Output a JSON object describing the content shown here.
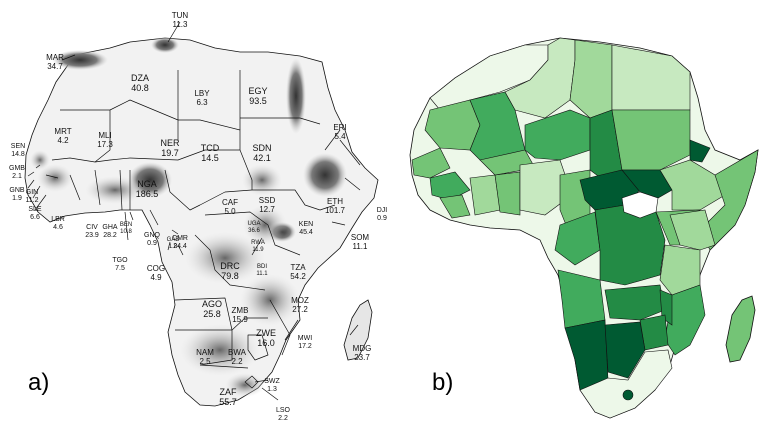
{
  "panels": {
    "a": {
      "label": "a)"
    },
    "b": {
      "label": "b)"
    }
  },
  "colors": {
    "scale": [
      "#edf8e9",
      "#c7e9c0",
      "#a1d99b",
      "#74c476",
      "#41ab5d",
      "#238b45",
      "#005a32"
    ],
    "popdensity_dark": "#3c3c3c",
    "popdensity_mid": "#9a9a9a",
    "popdensity_light": "#dcdcdc",
    "border": "#111111"
  },
  "countries": [
    {
      "code": "TUN",
      "value": "11.3"
    },
    {
      "code": "MAR",
      "value": "34.7"
    },
    {
      "code": "DZA",
      "value": "40.8"
    },
    {
      "code": "LBY",
      "value": "6.3"
    },
    {
      "code": "EGY",
      "value": "93.5"
    },
    {
      "code": "MRT",
      "value": "4.2"
    },
    {
      "code": "MLI",
      "value": "17.3"
    },
    {
      "code": "NER",
      "value": "19.7"
    },
    {
      "code": "TCD",
      "value": "14.5"
    },
    {
      "code": "SDN",
      "value": "42.1"
    },
    {
      "code": "ERI",
      "value": "5.4"
    },
    {
      "code": "SEN",
      "value": "14.8"
    },
    {
      "code": "GMB",
      "value": "2.1"
    },
    {
      "code": "GNB",
      "value": "1.9"
    },
    {
      "code": "GIN",
      "value": "11.2"
    },
    {
      "code": "SLE",
      "value": "6.6"
    },
    {
      "code": "LBR",
      "value": "4.6"
    },
    {
      "code": "CIV",
      "value": "23.9"
    },
    {
      "code": "GHA",
      "value": "28.2"
    },
    {
      "code": "TGO",
      "value": "7.5"
    },
    {
      "code": "BEN",
      "value": "10.8"
    },
    {
      "code": "NGA",
      "value": "186.5"
    },
    {
      "code": "CMR",
      "value": "24.4"
    },
    {
      "code": "CAF",
      "value": "5.0"
    },
    {
      "code": "SSD",
      "value": "12.7"
    },
    {
      "code": "ETH",
      "value": "101.7"
    },
    {
      "code": "DJI",
      "value": "0.9"
    },
    {
      "code": "SOM",
      "value": "11.1"
    },
    {
      "code": "KEN",
      "value": "45.4"
    },
    {
      "code": "UGA",
      "value": "36.6"
    },
    {
      "code": "RWA",
      "value": "11.9"
    },
    {
      "code": "BDI",
      "value": "11.1"
    },
    {
      "code": "DRC",
      "value": "79.8"
    },
    {
      "code": "GNQ",
      "value": "0.9"
    },
    {
      "code": "GAB",
      "value": "1.8"
    },
    {
      "code": "COG",
      "value": "4.9"
    },
    {
      "code": "TZA",
      "value": "54.2"
    },
    {
      "code": "AGO",
      "value": "25.8"
    },
    {
      "code": "ZMB",
      "value": "15.9"
    },
    {
      "code": "MOZ",
      "value": "27.2"
    },
    {
      "code": "MWI",
      "value": "17.2"
    },
    {
      "code": "ZWE",
      "value": "16.0"
    },
    {
      "code": "NAM",
      "value": "2.5"
    },
    {
      "code": "BWA",
      "value": "2.2"
    },
    {
      "code": "MDG",
      "value": "23.7"
    },
    {
      "code": "ZAF",
      "value": "55.7"
    },
    {
      "code": "SWZ",
      "value": "1.3"
    },
    {
      "code": "LSO",
      "value": "2.2"
    }
  ]
}
